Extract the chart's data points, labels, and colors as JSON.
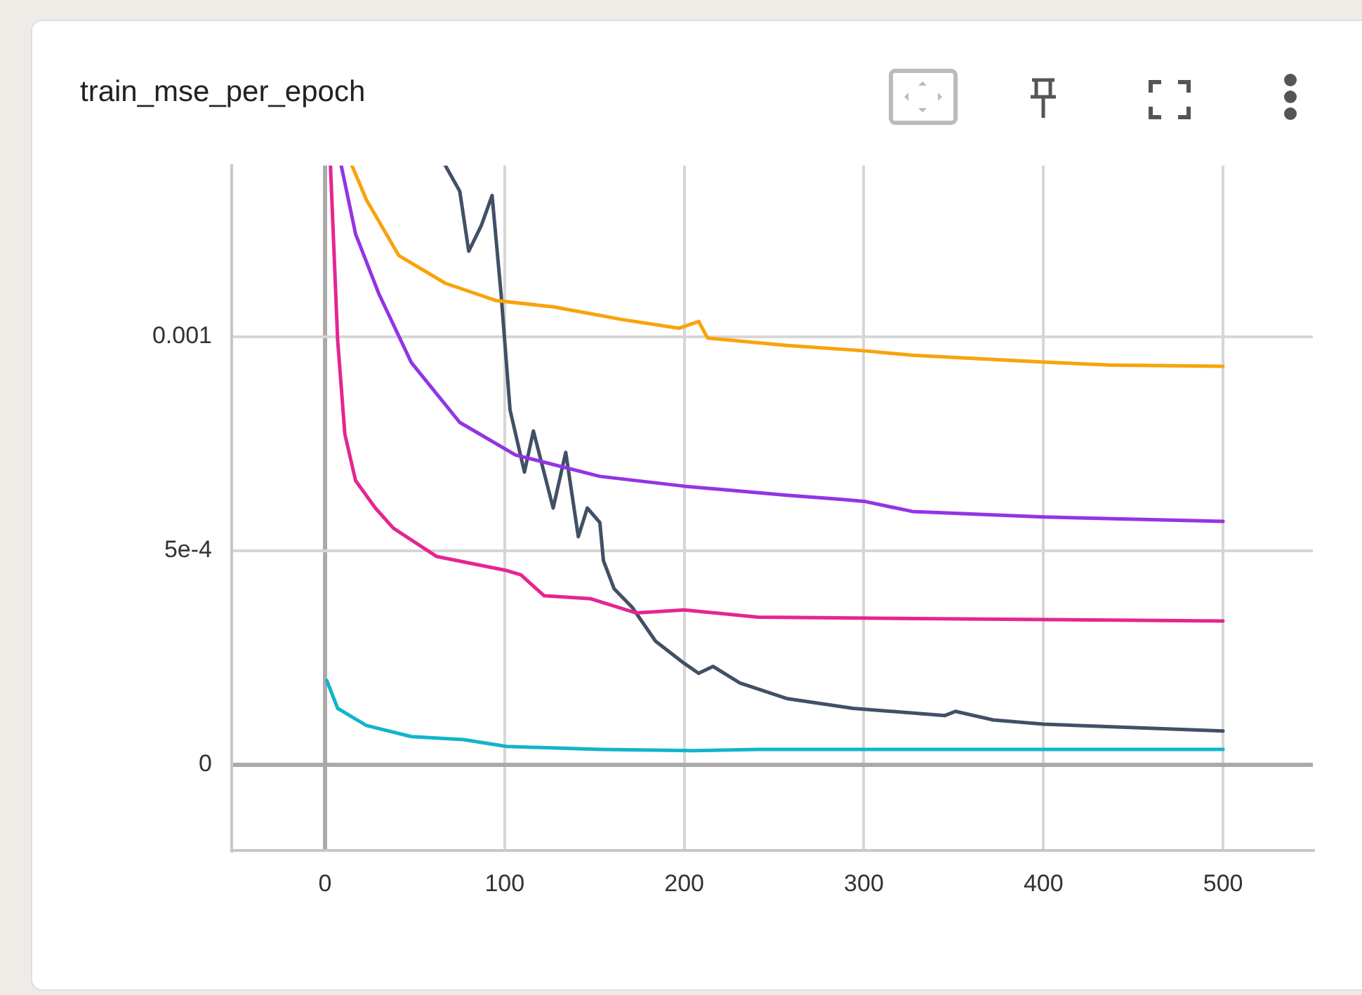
{
  "chart_data": {
    "type": "line",
    "title": "train_mse_per_epoch",
    "xlim": [
      -52,
      550
    ],
    "xticks": [
      0,
      100,
      200,
      300,
      400,
      500
    ],
    "ylim": [
      -0.0002,
      0.0014
    ],
    "yticks": [
      0,
      {
        "value": 0.0005,
        "label": "5e-4"
      },
      0.001
    ],
    "grid": true,
    "legend": false,
    "marker": "none",
    "line_style": "solid",
    "series": [
      {
        "color": "#f9a30b",
        "x": [
          15,
          23,
          41,
          67,
          95,
          127,
          166,
          197,
          208,
          213,
          257,
          301,
          327,
          400,
          437,
          500
        ],
        "values": [
          0.0014,
          0.00132,
          0.00119,
          0.001125,
          0.001085,
          0.00107,
          0.00104,
          0.00102,
          0.001036,
          0.000997,
          0.00098,
          0.000967,
          0.000957,
          0.000941,
          0.000934,
          0.000931
        ]
      },
      {
        "color": "#9334e6",
        "x": [
          9,
          17,
          30,
          48,
          75,
          106,
          153,
          200,
          257,
          288,
          301,
          327,
          400,
          500
        ],
        "values": [
          0.0014,
          0.00124,
          0.0011,
          0.00094,
          0.0008,
          0.000724,
          0.000674,
          0.000651,
          0.00063,
          0.00062,
          0.000615,
          0.000592,
          0.000579,
          0.000569
        ]
      },
      {
        "color": "#e52592",
        "x": [
          3,
          7,
          11,
          17,
          28,
          38,
          62,
          101,
          109,
          122,
          148,
          173,
          200,
          241,
          500
        ],
        "values": [
          0.0014,
          0.000993,
          0.000773,
          0.000664,
          0.0006,
          0.000553,
          0.000487,
          0.000454,
          0.000444,
          0.000395,
          0.000388,
          0.000355,
          0.000362,
          0.000345,
          0.000336
        ]
      },
      {
        "color": "#425066",
        "x": [
          67,
          75,
          80,
          87,
          93,
          98,
          103,
          111,
          116,
          127,
          134,
          141,
          146,
          153,
          155,
          161,
          171,
          184,
          200,
          208,
          216,
          231,
          257,
          294,
          345,
          351,
          372,
          400,
          500
        ],
        "values": [
          0.0014,
          0.00134,
          0.0012,
          0.00126,
          0.00133,
          0.0011,
          0.000829,
          0.000684,
          0.00078,
          0.0006,
          0.00073,
          0.000533,
          0.0006,
          0.000566,
          0.000477,
          0.000411,
          0.000368,
          0.000289,
          0.000237,
          0.000214,
          0.00023,
          0.000191,
          0.000155,
          0.000132,
          0.000115,
          0.000125,
          0.000105,
          9.5e-05,
          7.9e-05
        ]
      },
      {
        "color": "#12b5cb",
        "x": [
          1,
          7,
          23,
          48,
          77,
          101,
          153,
          205,
          241,
          500
        ],
        "values": [
          0.000197,
          0.000132,
          9.2e-05,
          6.6e-05,
          5.9e-05,
          4.3e-05,
          3.6e-05,
          3.3e-05,
          3.6e-05,
          3.6e-05
        ]
      }
    ]
  }
}
